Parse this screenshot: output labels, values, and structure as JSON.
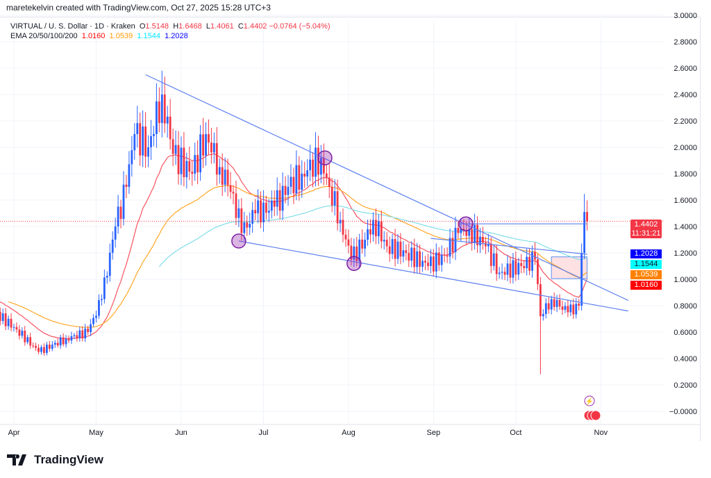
{
  "credit": "maretekelvin created with TradingView.com, Oct 27, 2025 15:28 UTC+3",
  "legend": {
    "symbol": "VIRTUAL / U. S. Dollar · 1D · Kraken",
    "o_label": "O",
    "o": "1.5148",
    "h_label": "H",
    "h": "1.6468",
    "l_label": "L",
    "l": "1.4061",
    "c_label": "C",
    "c": "1.4402",
    "change": "−0.0764 (−5.04%)",
    "ema_label": "EMA 20/50/100/200",
    "ema20": "1.0160",
    "ema50": "1.0539",
    "ema100": "1.1544",
    "ema200": "1.2028"
  },
  "price_tag": {
    "price": "1.4402",
    "countdown": "11:31:21"
  },
  "ema_tags": [
    {
      "v": "1.2028",
      "color": "#0000ff",
      "text": "#fff"
    },
    {
      "v": "1.1544",
      "color": "#00ffff",
      "text": "#131722"
    },
    {
      "v": "1.0539",
      "color": "#ff8000",
      "text": "#fff"
    },
    {
      "v": "1.0160",
      "color": "#ff0000",
      "text": "#fff"
    }
  ],
  "logo": "TradingView",
  "chart_data": {
    "type": "candlestick",
    "ylim": [
      -0.1,
      3.0
    ],
    "yticks": [
      "3.0000",
      "2.8000",
      "2.6000",
      "2.4000",
      "2.2000",
      "2.0000",
      "1.8000",
      "1.6000",
      "1.4000",
      "1.2000",
      "1.0000",
      "0.8000",
      "0.6000",
      "0.4000",
      "0.2000",
      "−0.0000"
    ],
    "ytick_values": [
      3.0,
      2.8,
      2.6,
      2.4,
      2.2,
      2.0,
      1.8,
      1.6,
      1.4,
      1.2,
      1.0,
      0.8,
      0.6,
      0.4,
      0.2,
      0.0
    ],
    "xticks": [
      {
        "label": "Apr",
        "day": 7
      },
      {
        "label": "May",
        "day": 37
      },
      {
        "label": "Jun",
        "day": 68
      },
      {
        "label": "Jul",
        "day": 98
      },
      {
        "label": "Aug",
        "day": 129
      },
      {
        "label": "Sep",
        "day": 160
      },
      {
        "label": "Oct",
        "day": 190
      },
      {
        "label": "Nov",
        "day": 221
      }
    ],
    "close_anchors": [
      [
        0,
        0.75
      ],
      [
        8,
        0.62
      ],
      [
        16,
        0.45
      ],
      [
        26,
        0.55
      ],
      [
        34,
        0.6
      ],
      [
        39,
        0.85
      ],
      [
        44,
        1.4
      ],
      [
        48,
        1.7
      ],
      [
        51,
        2.1
      ],
      [
        56,
        2.0
      ],
      [
        61,
        2.4
      ],
      [
        65,
        1.95
      ],
      [
        72,
        1.8
      ],
      [
        77,
        2.1
      ],
      [
        82,
        1.85
      ],
      [
        87,
        1.65
      ],
      [
        90,
        1.35
      ],
      [
        95,
        1.5
      ],
      [
        102,
        1.55
      ],
      [
        107,
        1.7
      ],
      [
        112,
        1.8
      ],
      [
        119,
        1.92
      ],
      [
        122,
        1.7
      ],
      [
        126,
        1.45
      ],
      [
        130,
        1.15
      ],
      [
        135,
        1.3
      ],
      [
        138,
        1.45
      ],
      [
        143,
        1.25
      ],
      [
        150,
        1.2
      ],
      [
        158,
        1.1
      ],
      [
        164,
        1.18
      ],
      [
        169,
        1.35
      ],
      [
        173,
        1.38
      ],
      [
        179,
        1.25
      ],
      [
        184,
        1.05
      ],
      [
        192,
        1.1
      ],
      [
        197,
        1.15
      ],
      [
        199,
        0.72
      ],
      [
        203,
        0.85
      ],
      [
        209,
        0.75
      ],
      [
        213,
        0.8
      ],
      [
        214,
        1.2
      ],
      [
        215,
        1.51
      ],
      [
        216,
        1.44
      ]
    ],
    "extreme_wicks": [
      [
        199,
        0.28
      ],
      [
        61,
        2.58
      ],
      [
        215,
        1.6468
      ]
    ],
    "ema_colors": {
      "20": "#f7525f",
      "50": "#ffa726",
      "100": "#80deea"
    },
    "trendlines": [
      [
        [
          55,
          2.55
        ],
        [
          231,
          0.84
        ]
      ],
      [
        [
          89,
          1.29
        ],
        [
          231,
          0.76
        ]
      ],
      [
        [
          169,
          1.42
        ],
        [
          216,
          1.42
        ]
      ],
      [
        [
          159,
          1.31
        ],
        [
          216,
          1.19
        ]
      ]
    ],
    "zone": {
      "from_day": 203,
      "to_day": 216,
      "low": 1.005,
      "high": 1.17
    },
    "markers": [
      [
        89,
        1.29
      ],
      [
        120.4,
        1.92
      ],
      [
        131,
        1.12
      ],
      [
        171.8,
        1.42
      ]
    ]
  }
}
